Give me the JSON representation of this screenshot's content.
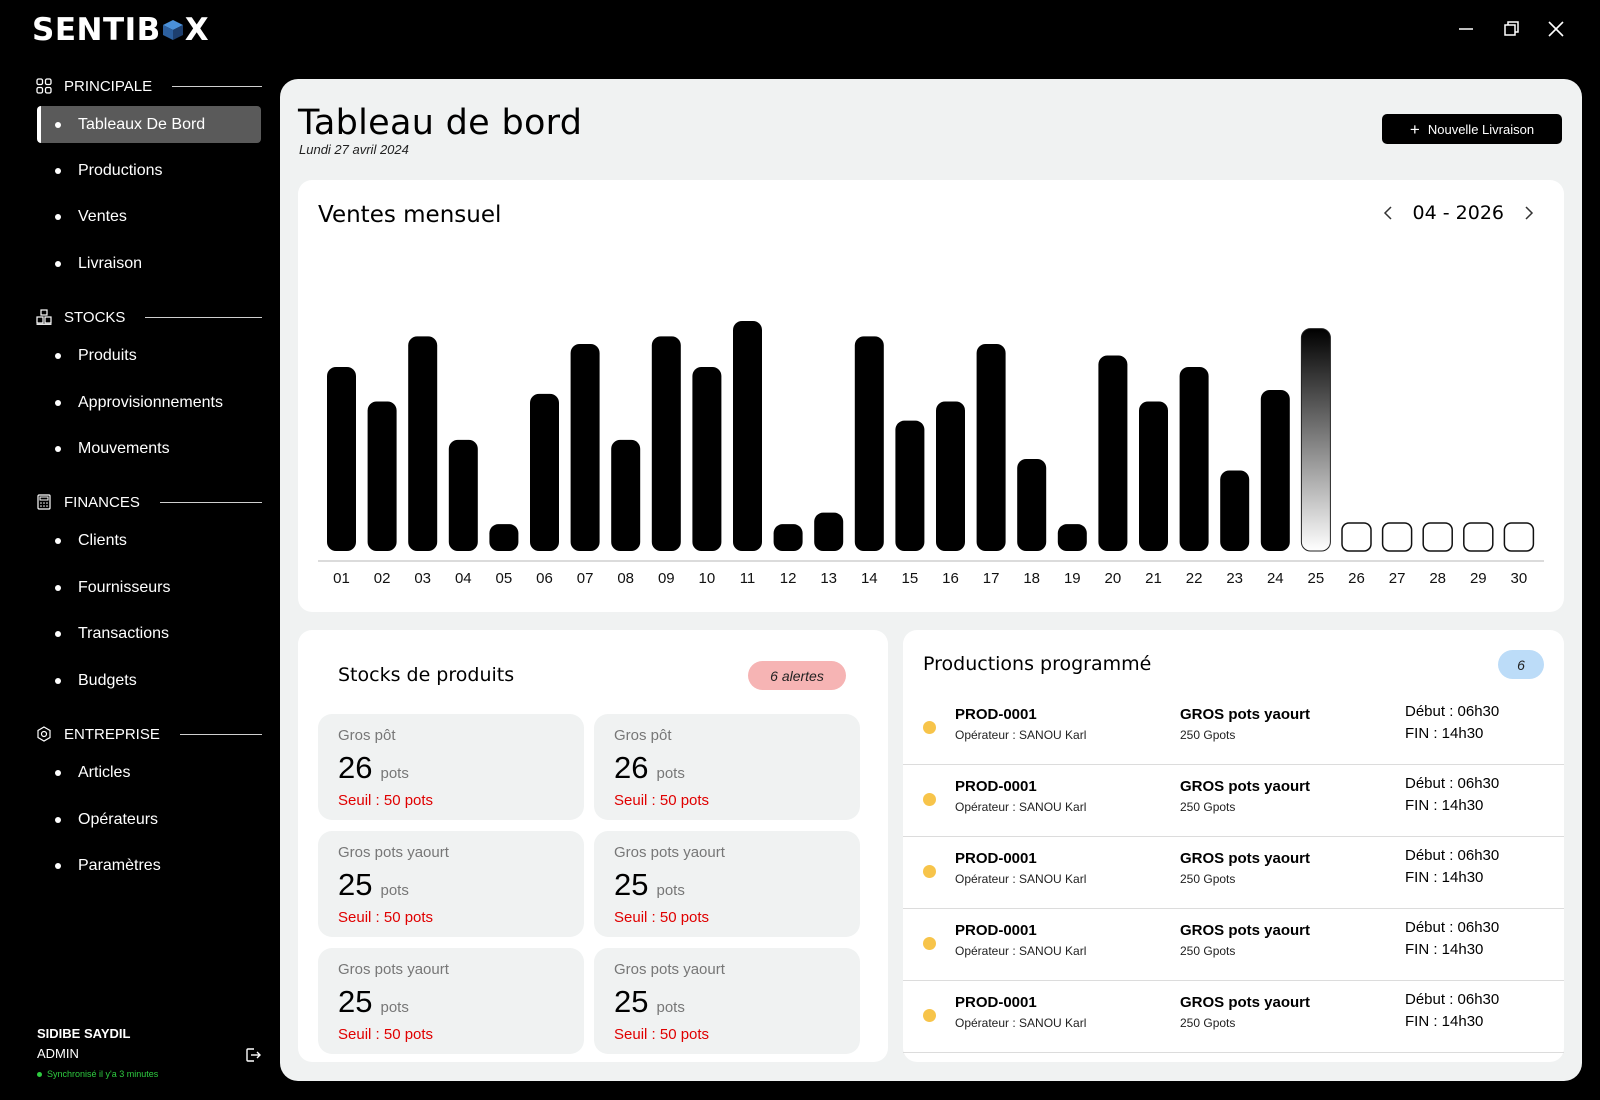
{
  "app": {
    "logo_text_a": "SENTIB",
    "logo_text_b": "X"
  },
  "window_controls": [
    "minimize-icon",
    "restore-icon",
    "close-icon"
  ],
  "sidebar": {
    "sections": [
      {
        "title": "PRINCIPALE",
        "icon": "grid-icon",
        "items": [
          "Tableaux De Bord",
          "Productions",
          "Ventes",
          "Livraison"
        ]
      },
      {
        "title": "STOCKS",
        "icon": "boxes-icon",
        "items": [
          "Produits",
          "Approvisionnements",
          "Mouvements"
        ]
      },
      {
        "title": "FINANCES",
        "icon": "calculator-icon",
        "items": [
          "Clients",
          "Fournisseurs",
          "Transactions",
          "Budgets"
        ]
      },
      {
        "title": "ENTREPRISE",
        "icon": "settings-icon",
        "items": [
          "Articles",
          "Opérateurs",
          "Paramètres"
        ]
      }
    ],
    "active_item": "Tableaux De Bord",
    "user": {
      "name": "SIDIBE SAYDIL",
      "role": "ADMIN",
      "sync": "Synchronisé il y'a 3 minutes"
    }
  },
  "header": {
    "title": "Tableau de bord",
    "date": "Lundi 27 avril 2024",
    "new_button": "Nouvelle Livraison"
  },
  "colors": {
    "sidebar_bg": "#000000",
    "panel_bg": "#f0f2f2",
    "alert_badge": "#f6b4b4",
    "count_badge": "#bcdcf8",
    "status_dot": "#f7c44a",
    "threshold_text": "#e00000",
    "sync_green": "#2ecc40"
  },
  "chart_section": {
    "title": "Ventes mensuel",
    "period": "04 - 2026"
  },
  "chart_data": {
    "type": "bar",
    "categories": [
      "01",
      "02",
      "03",
      "04",
      "05",
      "06",
      "07",
      "08",
      "09",
      "10",
      "11",
      "12",
      "13",
      "14",
      "15",
      "16",
      "17",
      "18",
      "19",
      "20",
      "21",
      "22",
      "23",
      "24",
      "25",
      "26",
      "27",
      "28",
      "29",
      "30"
    ],
    "values": [
      48,
      39,
      56,
      29,
      7,
      41,
      54,
      29,
      56,
      48,
      60,
      7,
      10,
      56,
      34,
      39,
      54,
      24,
      7,
      51,
      39,
      48,
      21,
      42,
      58,
      0,
      0,
      0,
      0,
      0
    ],
    "highlight_category": "25",
    "empty_categories": [
      "26",
      "27",
      "28",
      "29",
      "30"
    ],
    "ylim": [
      0,
      60
    ],
    "grid": false,
    "title": "Ventes mensuel"
  },
  "stocks": {
    "title": "Stocks de produits",
    "alerts": "6 alertes",
    "items": [
      {
        "name": "Gros pôt",
        "qty": "26",
        "unit": "pots",
        "threshold": "Seuil : 50 pots"
      },
      {
        "name": "Gros pôt",
        "qty": "26",
        "unit": "pots",
        "threshold": "Seuil : 50 pots"
      },
      {
        "name": "Gros pots yaourt",
        "qty": "25",
        "unit": "pots",
        "threshold": "Seuil : 50 pots"
      },
      {
        "name": "Gros pots yaourt",
        "qty": "25",
        "unit": "pots",
        "threshold": "Seuil : 50 pots"
      },
      {
        "name": "Gros pots yaourt",
        "qty": "25",
        "unit": "pots",
        "threshold": "Seuil : 50 pots"
      },
      {
        "name": "Gros pots yaourt",
        "qty": "25",
        "unit": "pots",
        "threshold": "Seuil : 50 pots"
      }
    ]
  },
  "productions": {
    "title": "Productions programmé",
    "count": "6",
    "rows": [
      {
        "code": "PROD-0001",
        "operator": "Opérateur : SANOU Karl",
        "product": "GROS pots yaourt",
        "qty": "250 Gpots",
        "start": "Début : 06h30",
        "end": "FIN : 14h30"
      },
      {
        "code": "PROD-0001",
        "operator": "Opérateur : SANOU Karl",
        "product": "GROS pots yaourt",
        "qty": "250 Gpots",
        "start": "Début : 06h30",
        "end": "FIN : 14h30"
      },
      {
        "code": "PROD-0001",
        "operator": "Opérateur : SANOU Karl",
        "product": "GROS pots yaourt",
        "qty": "250 Gpots",
        "start": "Début : 06h30",
        "end": "FIN : 14h30"
      },
      {
        "code": "PROD-0001",
        "operator": "Opérateur : SANOU Karl",
        "product": "GROS pots yaourt",
        "qty": "250 Gpots",
        "start": "Début : 06h30",
        "end": "FIN : 14h30"
      },
      {
        "code": "PROD-0001",
        "operator": "Opérateur : SANOU Karl",
        "product": "GROS pots yaourt",
        "qty": "250 Gpots",
        "start": "Début : 06h30",
        "end": "FIN : 14h30"
      }
    ]
  }
}
